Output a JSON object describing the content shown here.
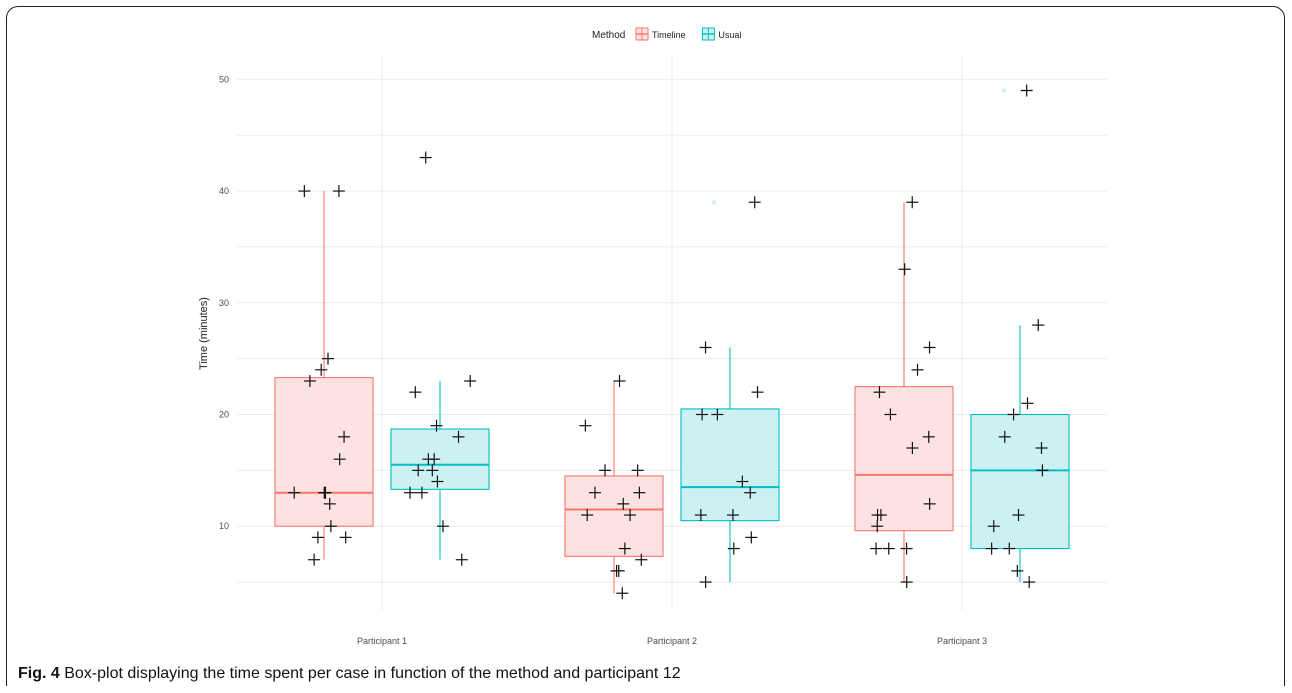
{
  "caption": {
    "label": "Fig. 4",
    "text": "Box-plot displaying the time spent per case in function of the method and participant 12"
  },
  "colors": {
    "timeline_stroke": "#F8766D",
    "timeline_fill": "#FDE2E2",
    "usual_stroke": "#00BFC4",
    "usual_fill": "#CDF1F2",
    "points": "#111111",
    "grid": "#EBEBEB"
  },
  "chart_data": {
    "type": "boxplot",
    "title": "",
    "xlabel": "",
    "ylabel": "Time (minutes)",
    "ylim": [
      2.5,
      52
    ],
    "yticks": [
      10,
      20,
      30,
      40,
      50
    ],
    "categories": [
      "Participant 1",
      "Participant 2",
      "Participant 3"
    ],
    "legend": {
      "title": "Method",
      "position": "top",
      "entries": [
        "Timeline",
        "Usual"
      ]
    },
    "grid": true,
    "series": [
      {
        "name": "Timeline",
        "boxes": [
          {
            "category": "Participant 1",
            "lower_whisker": 7,
            "q1": 10,
            "median": 13,
            "q3": 23.3,
            "upper_whisker": 40,
            "outliers": []
          },
          {
            "category": "Participant 2",
            "lower_whisker": 4,
            "q1": 7.3,
            "median": 11.5,
            "q3": 14.5,
            "upper_whisker": 23,
            "outliers": []
          },
          {
            "category": "Participant 3",
            "lower_whisker": 5,
            "q1": 9.6,
            "median": 14.6,
            "q3": 22.5,
            "upper_whisker": 39,
            "outliers": []
          }
        ],
        "points": [
          {
            "category": "Participant 1",
            "values": [
              40,
              40,
              25,
              24,
              23,
              18,
              16,
              13,
              13,
              13,
              13,
              12,
              10,
              9,
              9,
              7
            ]
          },
          {
            "category": "Participant 2",
            "values": [
              23,
              19,
              15,
              15,
              13,
              13,
              12,
              11,
              11,
              8,
              7,
              6,
              6,
              4
            ]
          },
          {
            "category": "Participant 3",
            "values": [
              39,
              33,
              26,
              24,
              22,
              20,
              18,
              17,
              12,
              11,
              11,
              10,
              8,
              8,
              8,
              5
            ]
          }
        ]
      },
      {
        "name": "Usual",
        "boxes": [
          {
            "category": "Participant 1",
            "lower_whisker": 7,
            "q1": 13.3,
            "median": 15.5,
            "q3": 18.7,
            "upper_whisker": 23,
            "outliers": [
              43
            ]
          },
          {
            "category": "Participant 2",
            "lower_whisker": 5,
            "q1": 10.5,
            "median": 13.5,
            "q3": 20.5,
            "upper_whisker": 26,
            "outliers": [
              39
            ]
          },
          {
            "category": "Participant 3",
            "lower_whisker": 5,
            "q1": 8,
            "median": 15,
            "q3": 20,
            "upper_whisker": 28,
            "outliers": [
              49
            ]
          }
        ],
        "points": [
          {
            "category": "Participant 1",
            "values": [
              43,
              23,
              22,
              19,
              18,
              16,
              16,
              15,
              15,
              14,
              13,
              13,
              10,
              7
            ]
          },
          {
            "category": "Participant 2",
            "values": [
              39,
              26,
              22,
              20,
              20,
              14,
              13,
              11,
              11,
              9,
              8,
              5
            ]
          },
          {
            "category": "Participant 3",
            "values": [
              49,
              28,
              21,
              20,
              18,
              17,
              15,
              11,
              10,
              8,
              8,
              6,
              5
            ]
          }
        ]
      }
    ]
  }
}
